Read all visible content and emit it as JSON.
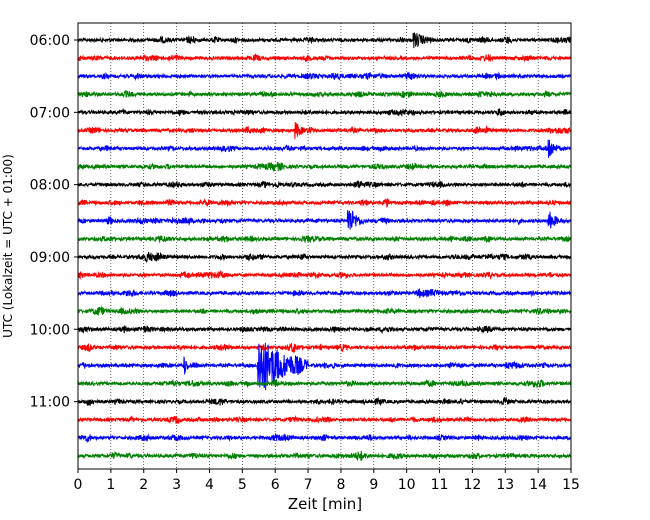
{
  "chart_data": {
    "type": "line",
    "title": "",
    "xlabel": "Zeit  [min]",
    "ylabel": "UTC (Lokalzeit = UTC + 01:00)",
    "xlim": [
      0,
      15
    ],
    "x_ticks": [
      "0",
      "1",
      "2",
      "3",
      "4",
      "5",
      "6",
      "7",
      "8",
      "9",
      "10",
      "11",
      "12",
      "13",
      "14",
      "15"
    ],
    "y_tick_labels": [
      "06:00",
      "07:00",
      "08:00",
      "09:00",
      "10:00",
      "11:00"
    ],
    "trace_minutes": 15,
    "trace_start": "06:00",
    "trace_count": 24,
    "grid": "vertical dotted",
    "series_colors": [
      "#000000",
      "#ff0000",
      "#0000ff",
      "#008000"
    ],
    "events": [
      {
        "trace_index": 10,
        "start_min": 8.2,
        "end_min": 8.7,
        "amplitude": 1.7
      },
      {
        "trace_index": 18,
        "start_min": 5.45,
        "end_min": 7.0,
        "amplitude": 3.6
      },
      {
        "trace_index": 18,
        "start_min": 3.2,
        "end_min": 3.4,
        "amplitude": 1.4
      },
      {
        "trace_index": 6,
        "start_min": 14.3,
        "end_min": 14.6,
        "amplitude": 1.3
      },
      {
        "trace_index": 10,
        "start_min": 14.3,
        "end_min": 14.6,
        "amplitude": 1.3
      },
      {
        "trace_index": 5,
        "start_min": 6.6,
        "end_min": 6.9,
        "amplitude": 1.0
      },
      {
        "trace_index": 0,
        "start_min": 10.2,
        "end_min": 10.8,
        "amplitude": 0.9
      }
    ]
  }
}
